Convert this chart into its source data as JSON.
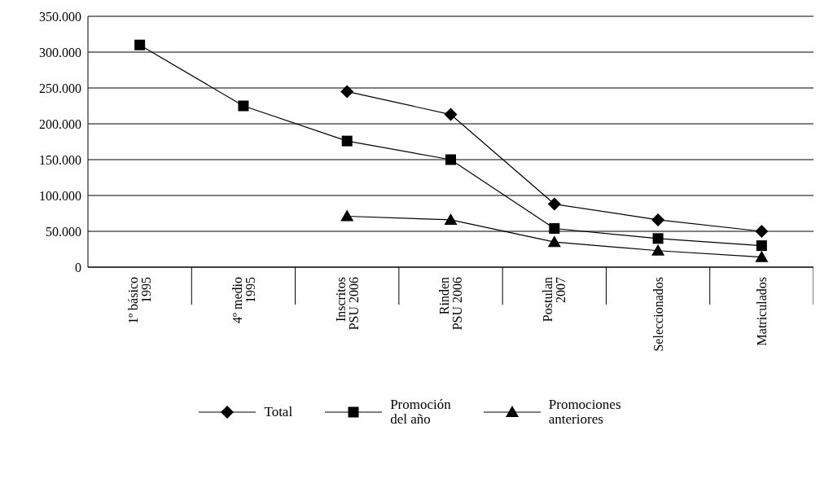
{
  "chart_data": {
    "type": "line",
    "categories": [
      "1º básico\n1995",
      "4º medio\n1995",
      "Inscritos\nPSU 2006",
      "Rinden\nPSU 2006",
      "Postulan\n2007",
      "Seleccionados",
      "Matriculados"
    ],
    "series": [
      {
        "name": "Total",
        "color": "#000000",
        "marker": "diamond",
        "values": [
          null,
          null,
          245000,
          213000,
          88000,
          66000,
          50000
        ]
      },
      {
        "name": "Promoción\ndel año",
        "color": "#000000",
        "marker": "square",
        "values": [
          310000,
          225000,
          176000,
          150000,
          54000,
          40000,
          30000
        ]
      },
      {
        "name": "Promociones\nanteriores",
        "color": "#000000",
        "marker": "triangle",
        "values": [
          null,
          null,
          71000,
          66000,
          35000,
          23000,
          14000
        ]
      }
    ],
    "ylim": [
      0,
      350000
    ],
    "yticks": [
      {
        "value": 0,
        "label": "0"
      },
      {
        "value": 50000,
        "label": "50.000"
      },
      {
        "value": 100000,
        "label": "100.000"
      },
      {
        "value": 150000,
        "label": "150.000"
      },
      {
        "value": 200000,
        "label": "200.000"
      },
      {
        "value": 250000,
        "label": "250.000"
      },
      {
        "value": 300000,
        "label": "300.000"
      },
      {
        "value": 350000,
        "label": "350.000"
      }
    ],
    "grid": "y",
    "legend": "bottom",
    "line_style": "solid"
  }
}
